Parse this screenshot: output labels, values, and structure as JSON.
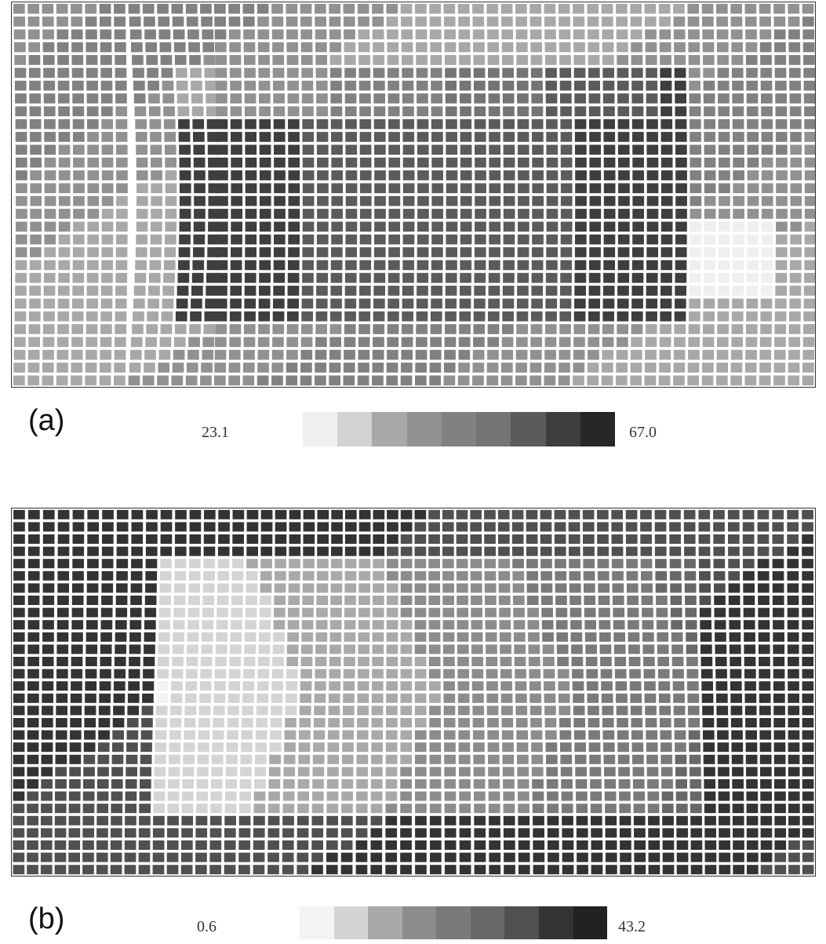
{
  "panels": [
    {
      "id": "a",
      "letter": "(a)",
      "min_label": "23.1",
      "max_label": "67.0",
      "colors": [
        "#efefef",
        "#d2d2d2",
        "#a8a8a8",
        "#919191",
        "#818181",
        "#747474",
        "#5b5b5b",
        "#3e3e3e",
        "#262626"
      ]
    },
    {
      "id": "b",
      "letter": "(b)",
      "min_label": "0.6",
      "max_label": "43.2",
      "colors": [
        "#f3f3f3",
        "#d4d4d4",
        "#a9a9a9",
        "#8c8c8c",
        "#7a7a7a",
        "#686868",
        "#505050",
        "#333333",
        "#222222"
      ]
    }
  ]
}
